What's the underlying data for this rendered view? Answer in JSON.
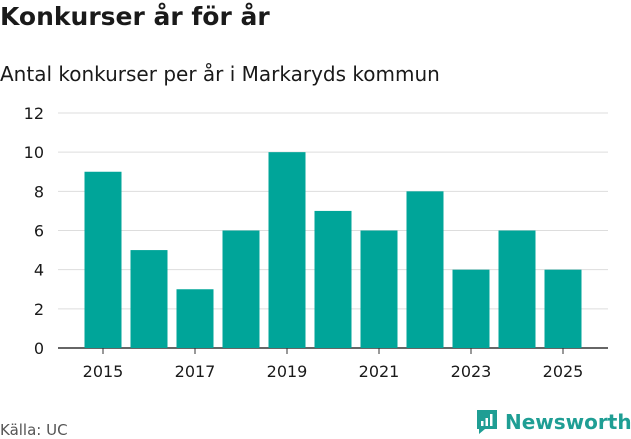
{
  "header": {
    "title": "Konkurser år för år",
    "subtitle": "Antal konkurser per år i Markaryds kommun"
  },
  "footer": {
    "source": "Källa: UC",
    "brand": "Newsworthy"
  },
  "colors": {
    "bar": "#00a599",
    "grid": "#dddddd",
    "brand": "#1f9e94"
  },
  "chart_data": {
    "type": "bar",
    "title": "Konkurser år för år",
    "subtitle": "Antal konkurser per år i Markaryds kommun",
    "xlabel": "",
    "ylabel": "",
    "categories": [
      2015,
      2016,
      2017,
      2018,
      2019,
      2020,
      2021,
      2022,
      2023,
      2024,
      2025
    ],
    "values": [
      9,
      5,
      3,
      6,
      10,
      7,
      6,
      8,
      4,
      6,
      4
    ],
    "ylim": [
      0,
      12
    ],
    "yticks": [
      0,
      2,
      4,
      6,
      8,
      10,
      12
    ],
    "xtick_labels": [
      "2015",
      "2017",
      "2019",
      "2021",
      "2023",
      "2025"
    ],
    "grid": true,
    "legend": "none"
  }
}
